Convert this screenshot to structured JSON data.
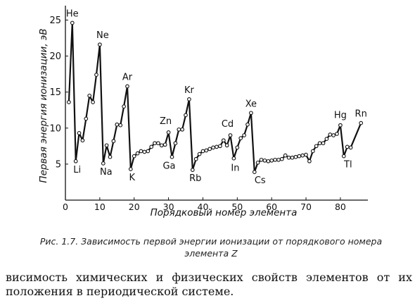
{
  "chart_data": {
    "type": "line",
    "title": "",
    "xlabel": "Порядковый номер элемента",
    "ylabel": "Первая энергия ионизации, эВ",
    "xlim": [
      0,
      88
    ],
    "ylim": [
      0,
      27
    ],
    "xticks": [
      0,
      10,
      20,
      30,
      40,
      50,
      60,
      70,
      80
    ],
    "yticks": [
      5,
      10,
      15,
      20,
      25
    ],
    "grid": false,
    "series": [
      {
        "x": [
          1,
          2,
          3,
          4,
          5,
          6,
          7,
          8,
          9,
          10,
          11,
          12,
          13,
          14,
          15,
          16,
          17,
          18,
          19,
          20,
          21,
          22,
          23,
          24,
          25,
          26,
          27,
          28,
          29,
          30,
          31,
          32,
          33,
          34,
          35,
          36,
          37,
          38,
          39,
          40,
          41,
          42,
          43,
          44,
          45,
          46,
          47,
          48,
          49,
          50,
          51,
          52,
          53,
          54,
          55,
          56,
          57,
          58,
          59,
          60,
          61,
          62,
          63,
          64,
          65,
          66,
          67,
          68,
          69,
          70,
          71,
          72,
          73,
          74,
          75,
          76,
          77,
          78,
          79,
          80,
          81,
          82,
          83,
          86
        ],
        "y": [
          13.6,
          24.6,
          5.4,
          9.3,
          8.3,
          11.3,
          14.5,
          13.6,
          17.4,
          21.6,
          5.1,
          7.6,
          6.0,
          8.2,
          10.5,
          10.4,
          13.0,
          15.8,
          4.3,
          6.1,
          6.5,
          6.8,
          6.7,
          6.8,
          7.4,
          7.9,
          7.9,
          7.6,
          7.7,
          9.4,
          6.0,
          7.9,
          9.8,
          9.8,
          11.8,
          14.0,
          4.2,
          5.7,
          6.4,
          6.8,
          6.9,
          7.1,
          7.3,
          7.4,
          7.5,
          8.3,
          7.6,
          9.0,
          5.8,
          7.3,
          8.6,
          9.0,
          10.5,
          12.1,
          3.9,
          5.2,
          5.6,
          5.5,
          5.4,
          5.5,
          5.6,
          5.6,
          5.7,
          6.2,
          5.9,
          5.9,
          6.0,
          6.1,
          6.2,
          6.3,
          5.4,
          6.8,
          7.5,
          7.9,
          7.9,
          8.5,
          9.1,
          9.0,
          9.2,
          10.4,
          6.1,
          7.4,
          7.3,
          10.7
        ]
      }
    ],
    "annotations": [
      {
        "text": "He",
        "x": 2
      },
      {
        "text": "Ne",
        "x": 10
      },
      {
        "text": "Ar",
        "x": 18
      },
      {
        "text": "Kr",
        "x": 36
      },
      {
        "text": "Xe",
        "x": 54
      },
      {
        "text": "Rn",
        "x": 86
      },
      {
        "text": "Li",
        "x": 3
      },
      {
        "text": "Na",
        "x": 11
      },
      {
        "text": "K",
        "x": 19
      },
      {
        "text": "Rb",
        "x": 37
      },
      {
        "text": "Cs",
        "x": 55
      },
      {
        "text": "Tl",
        "x": 81
      },
      {
        "text": "Zn",
        "x": 30
      },
      {
        "text": "Ga",
        "x": 31
      },
      {
        "text": "Cd",
        "x": 48
      },
      {
        "text": "In",
        "x": 49
      },
      {
        "text": "Hg",
        "x": 80
      }
    ]
  },
  "caption": "Рис. 1.7. Зависимость первой энергии ионизации от порядкового номера элемента Z",
  "body_text": "висимость химических и физических свойств элементов от их положения в периодической системе."
}
